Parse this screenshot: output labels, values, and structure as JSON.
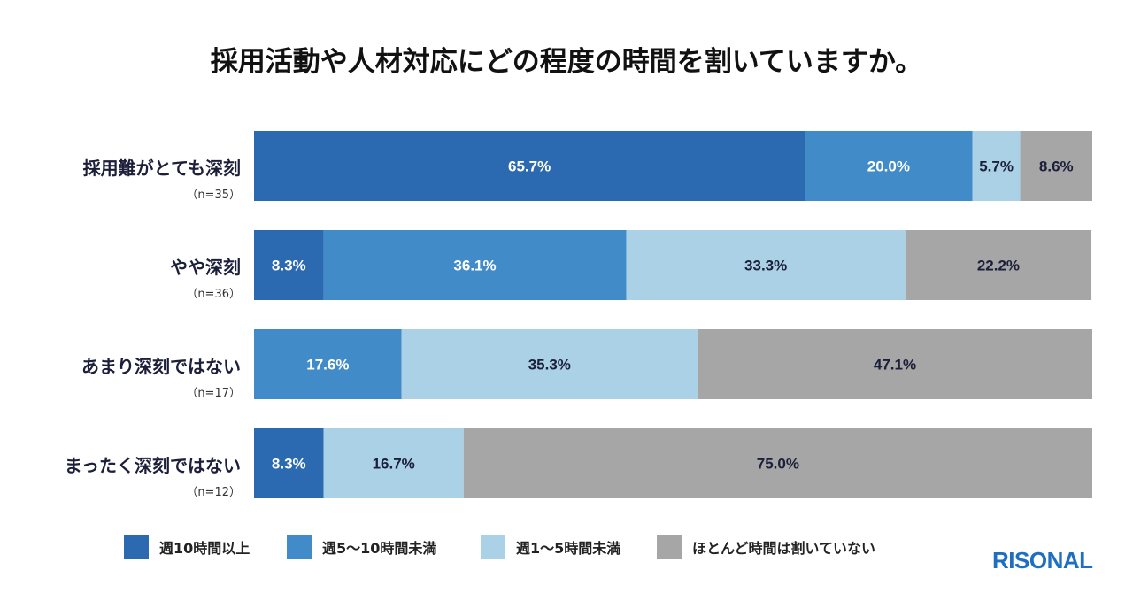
{
  "chart_data": {
    "type": "bar",
    "orientation": "horizontal-stacked-100",
    "title": "採用活動や人材対応にどの程度の時間を割いていますか。",
    "categories": [
      {
        "label": "採用難がとても深刻",
        "n": "（n=35）"
      },
      {
        "label": "やや深刻",
        "n": "（n=36）"
      },
      {
        "label": "あまり深刻ではない",
        "n": "（n=17）"
      },
      {
        "label": "まったく深刻ではない",
        "n": "（n=12）"
      }
    ],
    "series": [
      {
        "name": "週10時間以上",
        "color": "#2b69b1",
        "text_color": "#ffffff",
        "values": [
          65.7,
          8.3,
          0,
          8.3
        ],
        "labels": [
          "65.7%",
          "8.3%",
          "",
          "8.3%"
        ]
      },
      {
        "name": "週5～10時間未満",
        "color": "#418bc8",
        "text_color": "#ffffff",
        "values": [
          20.0,
          36.1,
          17.6,
          0
        ],
        "labels": [
          "20.0%",
          "36.1%",
          "17.6%",
          ""
        ]
      },
      {
        "name": "週1～5時間未満",
        "color": "#aad1e6",
        "text_color": "#1c1f3a",
        "values": [
          5.7,
          33.3,
          35.3,
          16.7
        ],
        "labels": [
          "5.7%",
          "33.3%",
          "35.3%",
          "16.7%"
        ]
      },
      {
        "name": "ほとんど時間は割いていない",
        "color": "#a6a6a6",
        "text_color": "#1c1f3a",
        "values": [
          8.6,
          22.2,
          47.1,
          75.0
        ],
        "labels": [
          "8.6%",
          "22.2%",
          "47.1%",
          "75.0%"
        ]
      }
    ],
    "xlim": [
      0,
      100
    ],
    "legend": "bottom"
  },
  "brand": "RISONAL"
}
